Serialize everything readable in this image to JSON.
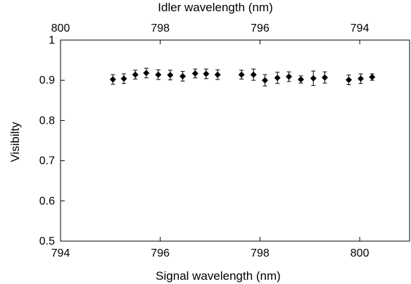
{
  "chart_data": {
    "type": "scatter",
    "xlabel": "Signal wavelength (nm)",
    "x2label": "Idler wavelength (nm)",
    "ylabel": "Visibilty",
    "xlim": [
      794,
      801
    ],
    "x2lim": [
      800,
      793
    ],
    "ylim": [
      0.5,
      1.0
    ],
    "x_ticks": [
      794,
      796,
      798,
      800
    ],
    "x2_ticks": [
      800,
      798,
      796,
      794
    ],
    "y_ticks": [
      "0.5",
      "0.6",
      "0.7",
      "0.8",
      "0.9",
      "1"
    ],
    "y_tick_values": [
      0.5,
      0.6,
      0.7,
      0.8,
      0.9,
      1.0
    ],
    "grid": false,
    "marker": "diamond",
    "marker_color": "#000000",
    "series": [
      {
        "x": [
          795.05,
          795.27,
          795.5,
          795.72,
          795.96,
          796.2,
          796.45,
          796.7,
          796.92,
          797.15,
          797.63,
          797.87,
          798.1,
          798.35,
          798.58,
          798.82,
          799.07,
          799.3,
          799.78,
          800.02,
          800.25
        ],
        "y": [
          0.902,
          0.904,
          0.914,
          0.918,
          0.914,
          0.913,
          0.91,
          0.917,
          0.916,
          0.914,
          0.914,
          0.914,
          0.9,
          0.906,
          0.909,
          0.902,
          0.905,
          0.907,
          0.901,
          0.904,
          0.908
        ],
        "err": [
          0.012,
          0.012,
          0.011,
          0.012,
          0.012,
          0.012,
          0.012,
          0.011,
          0.012,
          0.012,
          0.011,
          0.014,
          0.014,
          0.014,
          0.012,
          0.009,
          0.018,
          0.014,
          0.012,
          0.012,
          0.008
        ]
      }
    ]
  }
}
